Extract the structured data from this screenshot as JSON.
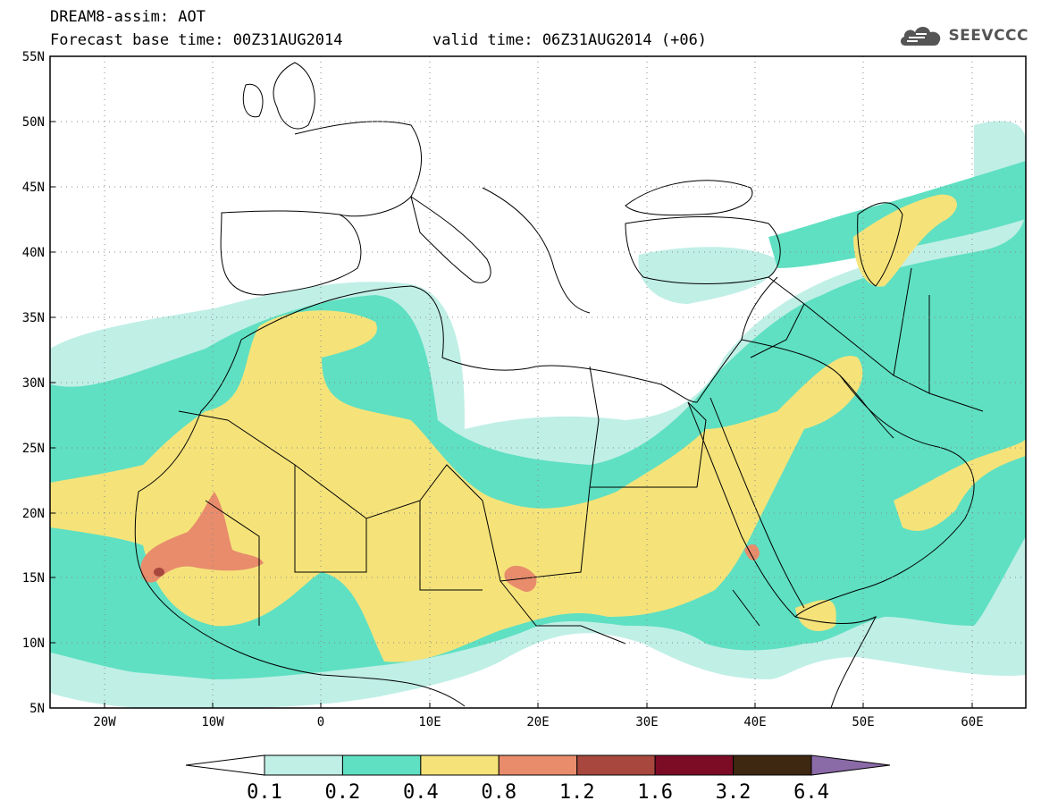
{
  "header": {
    "title": "DREAM8-assim: AOT",
    "subtitle": "Forecast base time: 00Z31AUG2014",
    "valid": "valid time: 06Z31AUG2014 (+06)",
    "logo_text": "SEEVCCC"
  },
  "map": {
    "variable": "AOT",
    "projection": "latitude-longitude",
    "lon_range": [
      -25,
      65
    ],
    "lat_range": [
      5,
      55
    ],
    "lat_labels": [
      "5N",
      "10N",
      "15N",
      "20N",
      "25N",
      "30N",
      "35N",
      "40N",
      "45N",
      "50N",
      "55N"
    ],
    "lon_labels": [
      "20W",
      "10W",
      "0",
      "10E",
      "20E",
      "30E",
      "40E",
      "50E",
      "60E"
    ],
    "grid": "dotted"
  },
  "colorbar": {
    "labels": [
      "0.1",
      "0.2",
      "0.4",
      "0.8",
      "1.2",
      "1.6",
      "3.2",
      "6.4"
    ],
    "colors": [
      "#ffffff",
      "#c0efe6",
      "#5fe0c2",
      "#f5e37a",
      "#e88c6c",
      "#a8473e",
      "#7c0b26",
      "#3e2812",
      "#8b6aa8"
    ]
  }
}
